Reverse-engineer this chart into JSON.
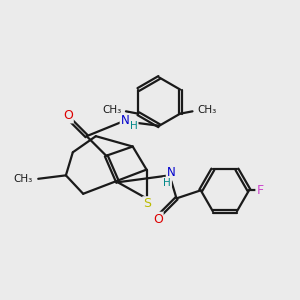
{
  "background_color": "#ebebeb",
  "bond_color": "#1a1a1a",
  "bond_width": 1.6,
  "atom_colors": {
    "O": "#dd0000",
    "N": "#0000cc",
    "S": "#bbbb00",
    "F": "#cc44cc",
    "H": "#008888",
    "C": "#1a1a1a"
  },
  "figsize": [
    3.0,
    3.0
  ],
  "dpi": 100,
  "xlim": [
    0,
    10
  ],
  "ylim": [
    0,
    10
  ]
}
